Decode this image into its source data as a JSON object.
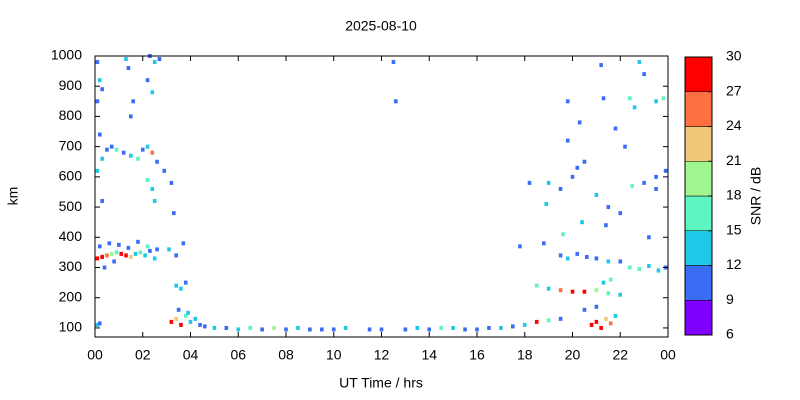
{
  "chart_data": {
    "type": "scatter",
    "title": "2025-08-10",
    "xlabel": "UT Time / hrs",
    "ylabel": "km",
    "xlim": [
      0,
      24
    ],
    "xticks": [
      {
        "value": 0,
        "label": "00"
      },
      {
        "value": 2,
        "label": "02"
      },
      {
        "value": 4,
        "label": "04"
      },
      {
        "value": 6,
        "label": "06"
      },
      {
        "value": 8,
        "label": "08"
      },
      10,
      12,
      14,
      16,
      18,
      20,
      22,
      {
        "value": 24,
        "label": "00"
      }
    ],
    "ylim": [
      70,
      1000
    ],
    "yticks": [
      100,
      200,
      300,
      400,
      500,
      600,
      700,
      800,
      900,
      1000
    ],
    "colorbar": {
      "label": "SNR / dB",
      "lim": [
        6,
        30
      ],
      "ticks": [
        6,
        9,
        12,
        15,
        18,
        21,
        24,
        27,
        30
      ],
      "colors": [
        "#8000ff",
        "#3a6cf6",
        "#1ec8e6",
        "#5ef5c0",
        "#a0f590",
        "#f0c878",
        "#ff7040",
        "#ff0000"
      ]
    },
    "x": [
      0.1,
      0.3,
      0.5,
      0.7,
      0.9,
      1.1,
      1.3,
      1.5,
      1.7,
      1.9,
      2.1,
      2.3,
      2.5,
      0.2,
      0.6,
      1.0,
      1.4,
      1.8,
      2.2,
      2.6,
      0.4,
      0.8,
      0.1,
      0.3,
      0.5,
      0.7,
      0.9,
      1.2,
      1.5,
      1.8,
      2.0,
      2.2,
      2.4,
      2.6,
      0.2,
      0.1,
      0.2,
      0.3,
      0.1,
      1.3,
      1.4,
      2.3,
      2.5,
      2.7,
      2.2,
      2.4,
      1.5,
      1.6,
      2.2,
      2.4,
      2.5,
      2.9,
      3.2,
      0.3,
      3.3,
      3.1,
      3.4,
      3.7,
      3.4,
      3.6,
      3.8,
      3.2,
      3.4,
      3.6,
      3.8,
      4.0,
      4.2,
      4.4,
      3.5,
      3.9,
      4.6,
      5.0,
      5.5,
      6.0,
      6.5,
      7.0,
      7.5,
      8.0,
      8.5,
      9.0,
      9.5,
      10.0,
      10.5,
      11.5,
      12.0,
      13.0,
      13.5,
      14.0,
      14.5,
      15.0,
      15.5,
      16.0,
      16.5,
      17.0,
      17.5,
      18.0,
      18.5,
      19.0,
      19.5,
      12.6,
      12.5,
      0.1,
      0.2,
      17.8,
      18.5,
      19.0,
      19.5,
      20.0,
      20.5,
      21.0,
      21.5,
      22.0,
      20.8,
      21.0,
      21.2,
      21.4,
      21.6,
      21.8,
      20.5,
      21.0,
      21.3,
      21.6,
      19.5,
      19.8,
      20.2,
      20.6,
      21.0,
      21.5,
      22.0,
      22.4,
      22.8,
      23.2,
      23.6,
      23.9,
      19.0,
      19.5,
      20.0,
      20.5,
      21.0,
      21.5,
      22.0,
      22.5,
      23.0,
      23.5,
      19.8,
      21.2,
      21.3,
      22.4,
      22.6,
      23.0,
      23.5,
      23.8,
      22.2,
      21.8,
      20.3,
      18.2,
      18.9,
      19.6,
      20.4,
      21.4,
      23.5,
      23.9,
      19.8,
      20.2,
      18.8,
      22.8,
      23.2
    ],
    "values": [
      330,
      335,
      340,
      345,
      350,
      345,
      340,
      335,
      345,
      350,
      340,
      355,
      330,
      370,
      380,
      375,
      365,
      385,
      370,
      360,
      300,
      320,
      620,
      660,
      690,
      700,
      690,
      680,
      670,
      660,
      690,
      700,
      680,
      650,
      740,
      980,
      920,
      890,
      850,
      990,
      960,
      1000,
      980,
      990,
      920,
      880,
      800,
      850,
      590,
      560,
      520,
      620,
      580,
      520,
      480,
      360,
      340,
      380,
      240,
      230,
      250,
      120,
      130,
      110,
      140,
      120,
      130,
      110,
      160,
      150,
      105,
      100,
      100,
      95,
      100,
      95,
      100,
      95,
      100,
      95,
      95,
      95,
      100,
      95,
      95,
      95,
      100,
      95,
      100,
      100,
      95,
      95,
      100,
      100,
      105,
      110,
      120,
      125,
      130,
      850,
      980,
      110,
      115,
      370,
      240,
      230,
      225,
      220,
      220,
      225,
      215,
      210,
      110,
      120,
      100,
      130,
      115,
      140,
      160,
      170,
      250,
      260,
      340,
      330,
      345,
      335,
      330,
      320,
      320,
      300,
      295,
      305,
      290,
      300,
      580,
      560,
      600,
      650,
      540,
      500,
      480,
      570,
      580,
      560,
      850,
      970,
      860,
      860,
      830,
      940,
      850,
      860,
      700,
      760,
      780,
      580,
      510,
      410,
      450,
      440,
      600,
      620,
      720,
      630,
      380,
      980,
      400
    ],
    "snr": [
      28,
      27,
      25,
      20,
      16,
      28,
      27,
      22,
      14,
      17,
      13,
      10,
      12,
      10,
      11,
      10,
      11,
      10,
      16,
      10,
      10,
      11,
      14,
      12,
      10,
      11,
      15,
      10,
      13,
      16,
      11,
      12,
      26,
      10,
      10,
      10,
      13,
      11,
      10,
      14,
      10,
      11,
      12,
      10,
      10,
      14,
      10,
      10,
      16,
      14,
      12,
      10,
      10,
      10,
      11,
      14,
      10,
      10,
      14,
      12,
      10,
      27,
      22,
      28,
      16,
      14,
      12,
      10,
      10,
      12,
      11,
      14,
      10,
      12,
      16,
      10,
      18,
      10,
      12,
      10,
      11,
      10,
      12,
      10,
      11,
      10,
      12,
      10,
      16,
      12,
      10,
      11,
      10,
      12,
      10,
      14,
      27,
      15,
      10,
      10,
      10,
      12,
      10,
      10,
      16,
      14,
      24,
      28,
      27,
      18,
      16,
      14,
      28,
      27,
      28,
      22,
      26,
      14,
      11,
      10,
      12,
      16,
      10,
      12,
      10,
      11,
      10,
      12,
      10,
      16,
      15,
      14,
      12,
      10,
      14,
      10,
      11,
      10,
      12,
      10,
      11,
      16,
      10,
      10,
      10,
      10,
      10,
      15,
      14,
      11,
      14,
      16,
      10,
      10,
      10,
      10,
      12,
      16,
      12,
      10,
      10,
      10,
      10,
      11,
      10,
      12,
      10
    ]
  }
}
